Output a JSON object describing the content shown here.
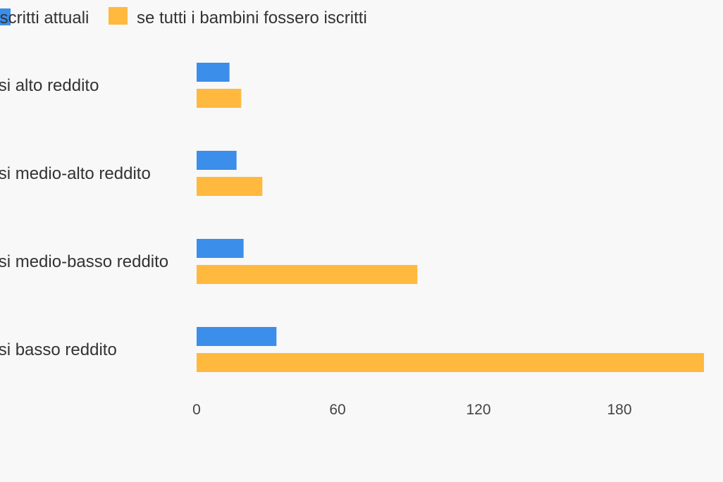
{
  "chart_data": {
    "type": "bar",
    "orientation": "horizontal",
    "categories": [
      "Paesi alto reddito",
      "Paesi medio-alto reddito",
      "Paesi medio-basso reddito",
      "Paesi basso reddito"
    ],
    "series": [
      {
        "name": "Iscritti attuali",
        "color": "#3b8eea",
        "values": [
          14,
          17,
          20,
          34
        ]
      },
      {
        "name": "se tutti i bambini fossero iscritti",
        "color": "#ffb93e",
        "values": [
          19,
          28,
          94,
          216
        ]
      }
    ],
    "xticks": [
      0,
      60,
      120,
      180
    ],
    "xlim": [
      0,
      216
    ],
    "legend_position": "top-left",
    "grid": false
  }
}
